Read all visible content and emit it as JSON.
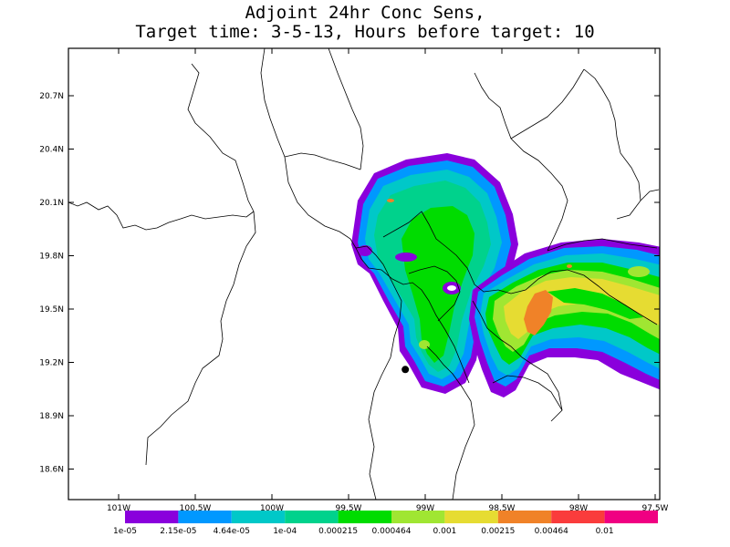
{
  "title_line1": "Adjoint 24hr Conc Sens,",
  "title_line2": "Target time: 3-5-13, Hours before target: 10",
  "y_ticks": [
    "20.7N",
    "20.4N",
    "20.1N",
    "19.8N",
    "19.5N",
    "19.2N",
    "18.9N",
    "18.6N"
  ],
  "x_ticks": [
    "101W",
    "100.5W",
    "100W",
    "99.5W",
    "99W",
    "98.5W",
    "98W",
    "97.5W"
  ],
  "colorbar": {
    "colors": [
      "#8a00dc",
      "#0098ff",
      "#00c8c8",
      "#00d28c",
      "#00dc00",
      "#a0e632",
      "#e6dc32",
      "#f08228",
      "#fa3c3c",
      "#f00082"
    ],
    "labels": [
      "1e-05",
      "2.15e-05",
      "4.64e-05",
      "1e-04",
      "0.000215",
      "0.000464",
      "0.001",
      "0.00215",
      "0.00464",
      "0.01"
    ]
  },
  "marker": {
    "lon": -99.13,
    "lat": 19.16,
    "color": "#000000"
  }
}
